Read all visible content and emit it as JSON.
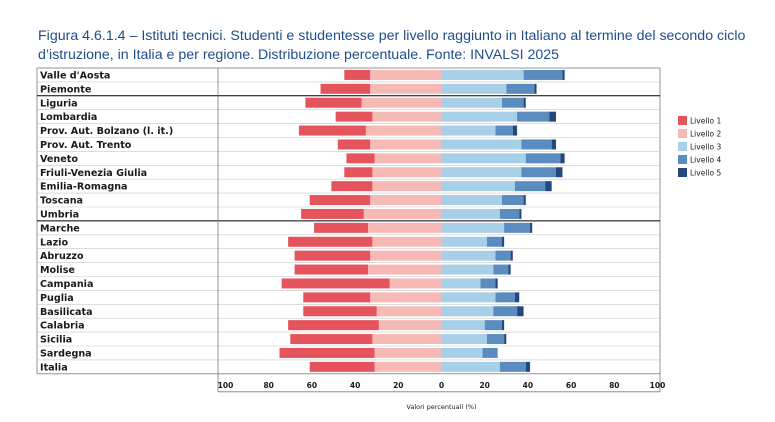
{
  "chart_data": {
    "type": "bar",
    "subtype": "diverging-stacked-horizontal",
    "title": "Figura 4.6.1.4 – Istituti tecnici. Studenti e studentesse per livello raggiunto in Italiano al termine del secondo ciclo d’istruzione, in Italia e per regione. Distribuzione percentuale. Fonte: INVALSI 2025",
    "xlabel": "Valori percentuali (%)",
    "ylabel": "",
    "xlim": [
      -100,
      100
    ],
    "xticks": [
      "100",
      "80",
      "60",
      "40",
      "20",
      "0",
      "20",
      "40",
      "60",
      "80",
      "100"
    ],
    "legend_position": "right",
    "categories": [
      "Valle d'Aosta",
      "Piemonte",
      "Liguria",
      "Lombardia",
      "Prov. Aut. Bolzano (l. it.)",
      "Prov. Aut. Trento",
      "Veneto",
      "Friuli-Venezia Giulia",
      "Emilia-Romagna",
      "Toscana",
      "Umbria",
      "Marche",
      "Lazio",
      "Abruzzo",
      "Molise",
      "Campania",
      "Puglia",
      "Basilicata",
      "Calabria",
      "Sicilia",
      "Sardegna",
      "Italia"
    ],
    "group_separators_after": [
      "Piemonte",
      "Umbria"
    ],
    "series": [
      {
        "name": "Livello 1",
        "side": "negative",
        "color": "#e5545c",
        "values": [
          12,
          23,
          26,
          17,
          31,
          15,
          13,
          13,
          19,
          28,
          29,
          25,
          39,
          35,
          34,
          50,
          31,
          34,
          42,
          38,
          44,
          30
        ]
      },
      {
        "name": "Livello 2",
        "side": "negative",
        "color": "#f7b9b6",
        "values": [
          33,
          33,
          37,
          32,
          35,
          33,
          31,
          32,
          32,
          33,
          36,
          34,
          32,
          33,
          34,
          24,
          33,
          30,
          29,
          32,
          31,
          31
        ]
      },
      {
        "name": "Livello 3",
        "side": "positive",
        "color": "#a8cfe8",
        "values": [
          38,
          30,
          28,
          35,
          25,
          37,
          39,
          37,
          34,
          28,
          27,
          29,
          21,
          25,
          24,
          18,
          25,
          24,
          20,
          21,
          19,
          27
        ]
      },
      {
        "name": "Livello 4",
        "side": "positive",
        "color": "#5b8cbf",
        "values": [
          18,
          13,
          10,
          15,
          8,
          14,
          16,
          16,
          14,
          10,
          9,
          12,
          7,
          7,
          7,
          7,
          9,
          11,
          8,
          8,
          7,
          12
        ]
      },
      {
        "name": "Livello 5",
        "side": "positive",
        "color": "#24487c",
        "values": [
          1,
          1,
          1,
          3,
          2,
          2,
          2,
          3,
          3,
          1,
          1,
          1,
          1,
          1,
          1,
          1,
          2,
          3,
          1,
          1,
          0,
          2
        ]
      }
    ]
  }
}
